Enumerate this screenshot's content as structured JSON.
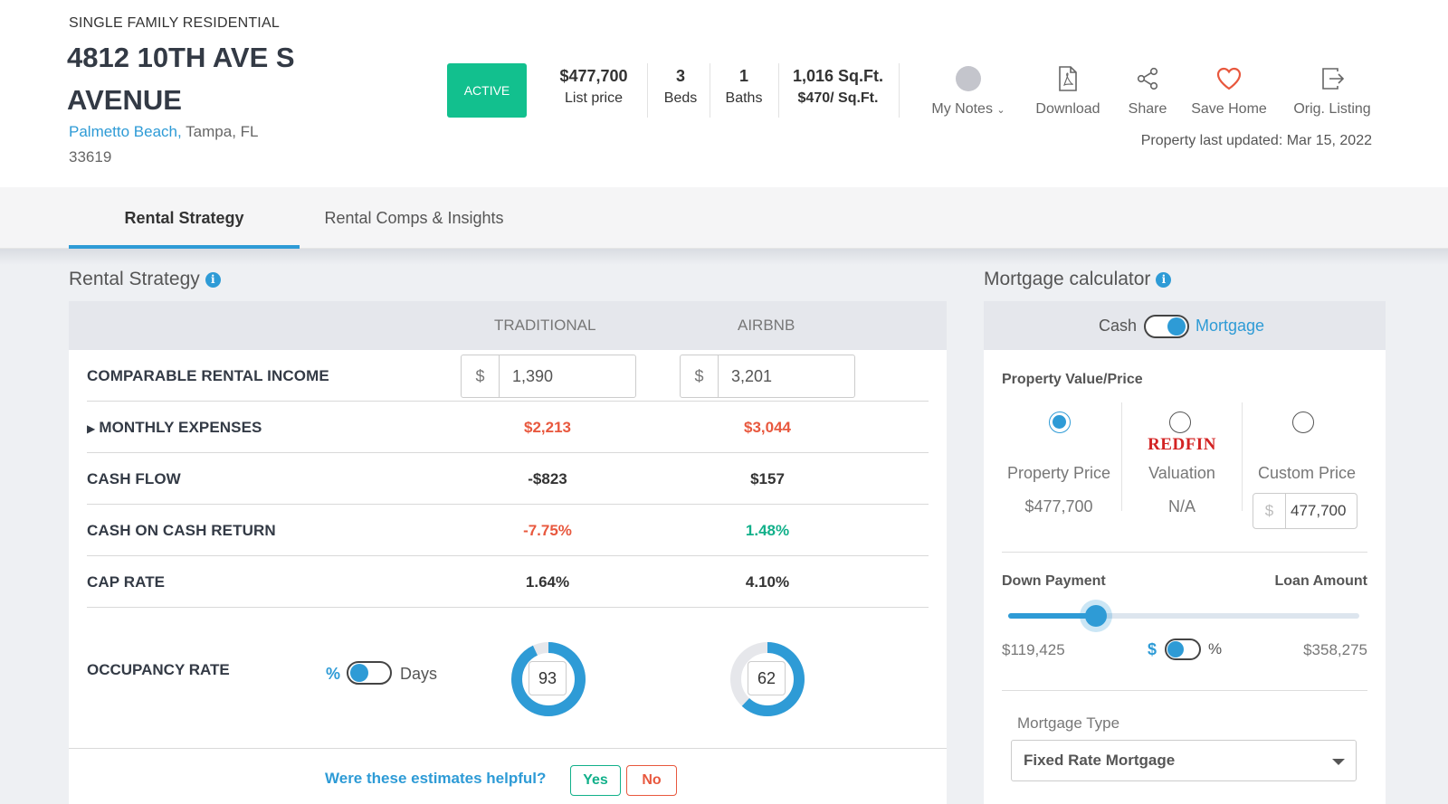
{
  "property": {
    "type": "SINGLE FAMILY RESIDENTIAL",
    "address": "4812 10TH AVE S AVENUE",
    "neighborhood": "Palmetto Beach,",
    "city_state_zip": "Tampa, FL 33619",
    "status": "ACTIVE",
    "list_price": "$477,700",
    "list_price_label": "List price",
    "beds": "3",
    "beds_label": "Beds",
    "baths": "1",
    "baths_label": "Baths",
    "sqft": "1,016 Sq.Ft.",
    "price_per_sqft": "$470/ Sq.Ft.",
    "last_updated": "Property last updated: Mar 15, 2022"
  },
  "actions": {
    "notes": "My Notes",
    "download": "Download",
    "share": "Share",
    "save": "Save Home",
    "listing": "Orig. Listing"
  },
  "tabs": [
    "Rental Strategy",
    "Rental Comps & Insights"
  ],
  "rental": {
    "title": "Rental Strategy",
    "col1": "TRADITIONAL",
    "col2": "AIRBNB",
    "currency": "$",
    "income_label": "COMPARABLE RENTAL INCOME",
    "income_traditional": "1,390",
    "income_airbnb": "3,201",
    "rows": [
      {
        "label": "MONTHLY EXPENSES",
        "traditional": "$2,213",
        "airbnb": "$3,044"
      },
      {
        "label": "CASH FLOW",
        "traditional": "-$823",
        "airbnb": "$157"
      },
      {
        "label": "CASH ON CASH RETURN",
        "traditional": "-7.75%",
        "airbnb": "1.48%"
      },
      {
        "label": "CAP RATE",
        "traditional": "1.64%",
        "airbnb": "4.10%"
      }
    ],
    "occupancy_label": "OCCUPANCY RATE",
    "occ_pct": "%",
    "occ_days": "Days",
    "occ_traditional": "93",
    "occ_airbnb": "62",
    "feedback_question": "Were these estimates helpful?",
    "yes": "Yes",
    "no": "No"
  },
  "mortgage": {
    "title": "Mortgage calculator",
    "cash": "Cash",
    "mortgage": "Mortgage",
    "value_label": "Property Value/Price",
    "redfin": "REDFIN",
    "options": [
      {
        "label": "Property Price",
        "value": "$477,700"
      },
      {
        "label": "Valuation",
        "value": "N/A"
      },
      {
        "label": "Custom Price",
        "value": "477,700"
      }
    ],
    "currency": "$",
    "down_label": "Down Payment",
    "loan_label": "Loan Amount",
    "down_value": "$119,425",
    "loan_value": "$358,275",
    "down_fraction": 0.25,
    "unit_dollar": "$",
    "unit_pct": "%",
    "type_label": "Mortgage Type",
    "type_value": "Fixed Rate Mortgage"
  },
  "colors": {
    "accent": "#2e9bd6",
    "active": "#12c08e",
    "negative": "#e8583e",
    "positive": "#12b08a",
    "heart": "#e8583e"
  }
}
